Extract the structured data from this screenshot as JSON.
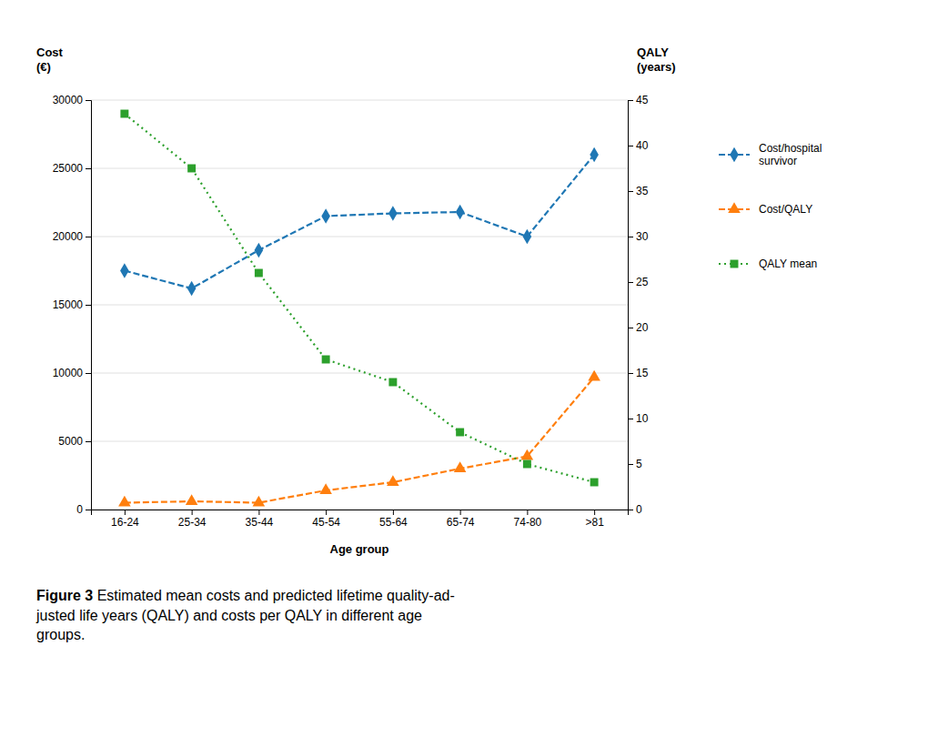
{
  "chart_data": {
    "type": "line",
    "categories": [
      "16-24",
      "25-34",
      "35-44",
      "45-54",
      "55-64",
      "65-74",
      "74-80",
      ">81"
    ],
    "series": [
      {
        "name": "Cost/hospital\nsurvivor",
        "values": [
          17500,
          16200,
          19000,
          21500,
          21700,
          21800,
          20000,
          26000
        ],
        "marker": "diamond",
        "line_style": "dashed"
      },
      {
        "name": "Cost/QALY",
        "values": [
          500,
          600,
          500,
          1400,
          2000,
          3000,
          3900,
          9700
        ],
        "marker": "triangle",
        "line_style": "dashed"
      },
      {
        "name": "QALY mean",
        "values": [
          43.5,
          37.5,
          26.0,
          16.5,
          14.0,
          8.5,
          5.0,
          3.0
        ],
        "marker": "square",
        "line_style": "dotted",
        "axis": "y2"
      }
    ],
    "ylim": [
      0,
      30000
    ],
    "yticks": [
      0,
      5000,
      10000,
      15000,
      20000,
      25000,
      30000
    ],
    "y2lim": [
      0,
      45
    ],
    "y2ticks": [
      0,
      5,
      10,
      15,
      20,
      25,
      30,
      35,
      40,
      45
    ],
    "ylabel": "Cost\n(€)",
    "y2label": "QALY\n(years)",
    "xlabel": "Age group",
    "grid": true,
    "legend": "right",
    "caption_bold": "Figure 3",
    "caption": " Estimated mean costs and predicted lifetime quality-ad-\njusted life years (QALY) and costs per QALY in different age\ngroups."
  }
}
